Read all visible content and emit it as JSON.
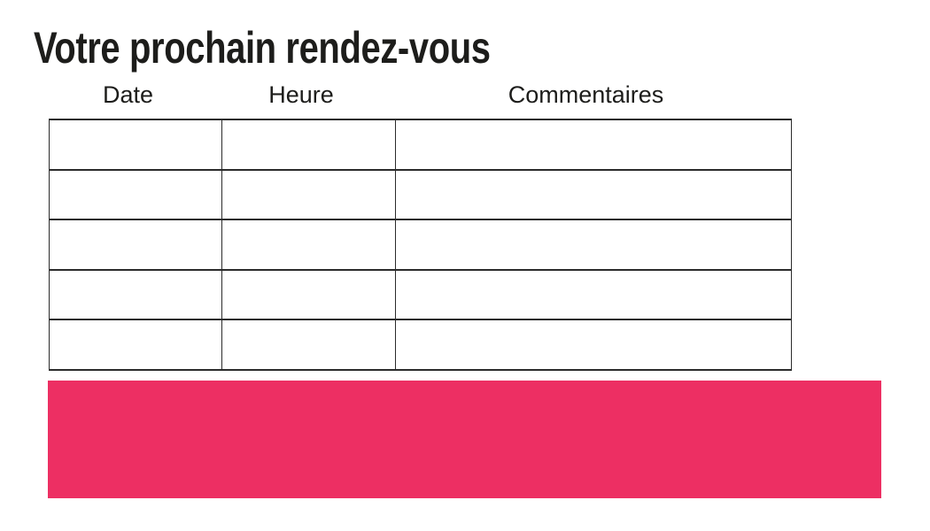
{
  "page": {
    "title": "Votre prochain rendez-vous"
  },
  "table": {
    "headers": [
      "Date",
      "Heure",
      "Commentaires"
    ],
    "rows": [
      {
        "date": "",
        "heure": "",
        "commentaires": ""
      },
      {
        "date": "",
        "heure": "",
        "commentaires": ""
      },
      {
        "date": "",
        "heure": "",
        "commentaires": ""
      },
      {
        "date": "",
        "heure": "",
        "commentaires": ""
      },
      {
        "date": "",
        "heure": "",
        "commentaires": ""
      }
    ]
  },
  "colors": {
    "accent_pink": "#ED2F63",
    "text": "#1d1d1b",
    "table_border": "#2b2b2b"
  }
}
